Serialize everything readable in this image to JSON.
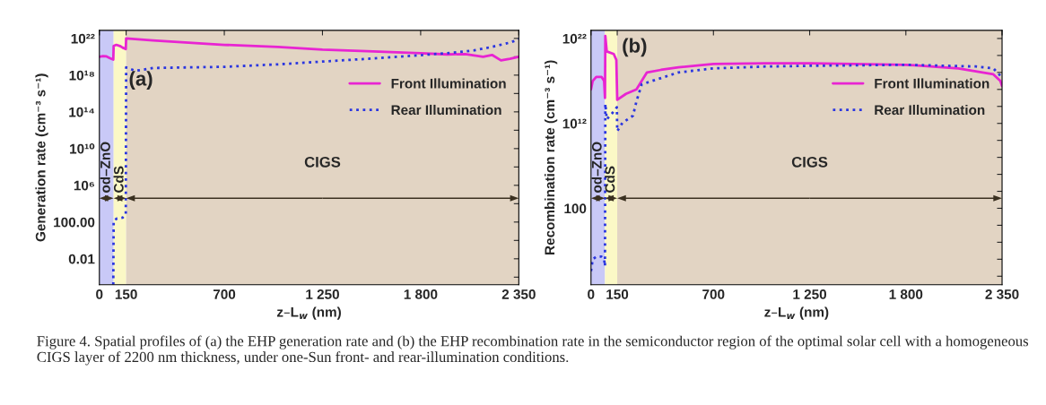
{
  "chart_data": [
    {
      "type": "line",
      "title": null,
      "xlabel": "z–L$_{w}$ (nm)",
      "ylabel": "Generation rate (cm⁻³ s⁻¹)",
      "log": "y",
      "xlim": [
        0,
        2350
      ],
      "xticks": [
        0,
        150,
        700,
        {
          "value": 1250,
          "label": "1 250"
        },
        {
          "value": 1800,
          "label": "1 800"
        },
        {
          "value": 2350,
          "label": "2 350"
        }
      ],
      "ylim": [
        1.5e-05,
        7.5e+22
      ],
      "yticks": [
        {
          "value": 1e+22,
          "label": "10²²"
        },
        {
          "value": 1e+20,
          "label": null
        },
        {
          "value": 1e+18,
          "label": "10¹⁸"
        },
        {
          "value": 1e+16,
          "label": null
        },
        {
          "value": 100000000000000.0,
          "label": "10¹⁴"
        },
        {
          "value": 1000000000000.0,
          "label": null
        },
        {
          "value": 10000000000.0,
          "label": "10¹⁰"
        },
        {
          "value": 100000000.0,
          "label": null
        },
        {
          "value": 1000000.0,
          "label": "10⁶"
        },
        {
          "value": 10000.0,
          "label": null
        },
        {
          "value": 100,
          "label": "100.00"
        },
        {
          "value": 1,
          "label": null
        },
        {
          "value": 0.01,
          "label": "0.01"
        },
        {
          "value": 0.0001,
          "label": null
        }
      ],
      "bands": [
        {
          "axis": "x",
          "from": 0,
          "to": 80,
          "label": "od–ZnO",
          "color": "#c9c9f7"
        },
        {
          "axis": "x",
          "from": 80,
          "to": 150,
          "label": "CdS",
          "color": "#fbf8c6"
        },
        {
          "axis": "x",
          "from": 150,
          "to": 2350,
          "label": "CIGS",
          "color": "#e2d4c3"
        }
      ],
      "legend": "top right",
      "grid": false,
      "annotations": [
        "(a)",
        "Figure 4. Spatial profiles of (a) the EHP generation rate and (b) the EHP recombination rate in the semiconductor region of the optimal solar cell with a homogeneous CIGS layer of 2200 nm thickness, under one-Sun front- and rear-illumination conditions."
      ],
      "series": [
        {
          "name": "Front Illumination",
          "color": "#e824d2",
          "line_style": "solid",
          "x": [
            0,
            20,
            40,
            60,
            78,
            80,
            95,
            115,
            130,
            148,
            150,
            300,
            500,
            700,
            1000,
            1250,
            1500,
            1800,
            1950,
            2050,
            2150,
            2200,
            2250,
            2300,
            2350
          ],
          "values": [
            1e+20,
            1.2e+20,
            1.1e+20,
            7e+19,
            5e+19,
            1.5e+21,
            2e+21,
            1.5e+21,
            1e+21,
            7e+20,
            1e+22,
            6e+21,
            3.5e+21,
            2e+21,
            1.2e+21,
            6e+20,
            4e+20,
            2.5e+20,
            1.8e+20,
            2e+20,
            1e+20,
            1.6e+20,
            4e+19,
            6e+19,
            1e+20
          ]
        },
        {
          "name": "Rear Illumination",
          "color": "#2a36e0",
          "line_style": "dotted",
          "x": [
            78,
            80,
            100,
            130,
            148,
            150,
            200,
            250,
            300,
            500,
            700,
            1000,
            1250,
            1500,
            1800,
            2000,
            2100,
            2200,
            2300,
            2350
          ],
          "values": [
            1.5e-05,
            150.0,
            250.0,
            300.0,
            600.0,
            7e+18,
            3e+18,
            4e+18,
            6e+18,
            7e+18,
            8e+18,
            1.5e+19,
            3e+19,
            6e+19,
            1.5e+20,
            3e+20,
            5e+20,
            1.2e+21,
            3.5e+21,
            8e+21
          ]
        }
      ]
    },
    {
      "type": "line",
      "title": null,
      "xlabel": "z–L$_{w}$ (nm)",
      "ylabel": "Recombination rate (cm⁻³ s⁻¹)",
      "log": "y",
      "xlim": [
        0,
        2350
      ],
      "xticks": [
        0,
        150,
        700,
        {
          "value": 1250,
          "label": "1 250"
        },
        {
          "value": 1800,
          "label": "1 800"
        },
        {
          "value": 2350,
          "label": "2 350"
        }
      ],
      "ylim": [
        1e-07,
        9e+22
      ],
      "yticks": [
        {
          "value": 1e+22,
          "label": "10²²"
        },
        {
          "value": 1e+20,
          "label": null
        },
        {
          "value": 1e+18,
          "label": null
        },
        {
          "value": 1e+16,
          "label": null
        },
        {
          "value": 100000000000000.0,
          "label": null
        },
        {
          "value": 1000000000000.0,
          "label": "10¹²"
        },
        {
          "value": 10000000000.0,
          "label": null
        },
        {
          "value": 100000000.0,
          "label": null
        },
        {
          "value": 1000000.0,
          "label": null
        },
        {
          "value": 10000.0,
          "label": null
        },
        100,
        {
          "value": 1,
          "label": null
        },
        {
          "value": 0.01,
          "label": null
        },
        {
          "value": 0.0001,
          "label": null
        },
        {
          "value": 1e-06,
          "label": null
        }
      ],
      "bands": [
        {
          "axis": "x",
          "from": 0,
          "to": 80,
          "label": "od–ZnO",
          "color": "#c9c9f7"
        },
        {
          "axis": "x",
          "from": 80,
          "to": 150,
          "label": "CdS",
          "color": "#fbf8c6"
        },
        {
          "axis": "x",
          "from": 150,
          "to": 2350,
          "label": "CIGS",
          "color": "#e2d4c3"
        }
      ],
      "legend": "top right",
      "grid": false,
      "annotations": [
        "(b)"
      ],
      "series": [
        {
          "name": "Front Illumination",
          "color": "#e824d2",
          "line_style": "solid",
          "x": [
            0,
            10,
            30,
            60,
            75,
            80,
            82,
            90,
            130,
            145,
            150,
            200,
            260,
            290,
            320,
            400,
            500,
            700,
            1000,
            1250,
            1500,
            1800,
            2100,
            2300,
            2340,
            2350
          ],
          "values": [
            1e+16,
            1e+17,
            3e+17,
            3e+17,
            1e+17,
            1000000000000000.0,
            2e+22,
            3e+20,
            1.5e+20,
            3e+19,
            600000000000000.0,
            3000000000000000.0,
            1e+16,
            1e+17,
            1e+18,
            2e+18,
            4e+18,
            1e+19,
            1.2e+19,
            1.2e+19,
            1e+19,
            8e+18,
            3e+18,
            6e+17,
            1e+17,
            2.5e+16
          ]
        },
        {
          "name": "Rear Illumination",
          "color": "#2a36e0",
          "line_style": "dotted",
          "x": [
            0,
            10,
            30,
            60,
            75,
            80,
            82,
            90,
            130,
            148,
            150,
            180,
            240,
            260,
            290,
            350,
            500,
            700,
            1000,
            1250,
            1800,
            2200,
            2300,
            2350
          ],
          "values": [
            4e-06,
            0.0001,
            0.0002,
            0.0002,
            0.0001,
            1.5e-05,
            200000000000000.0,
            3000000000000.0,
            25000000000000.0,
            80000000000000.0,
            120000000000.0,
            1200000000000.0,
            8000000000000.0,
            400000000000000.0,
            4e+16,
            1e+17,
            1e+18,
            3e+18,
            5e+18,
            6e+18,
            8e+18,
            5e+18,
            3e+18,
            2.5e+17
          ]
        }
      ]
    }
  ]
}
